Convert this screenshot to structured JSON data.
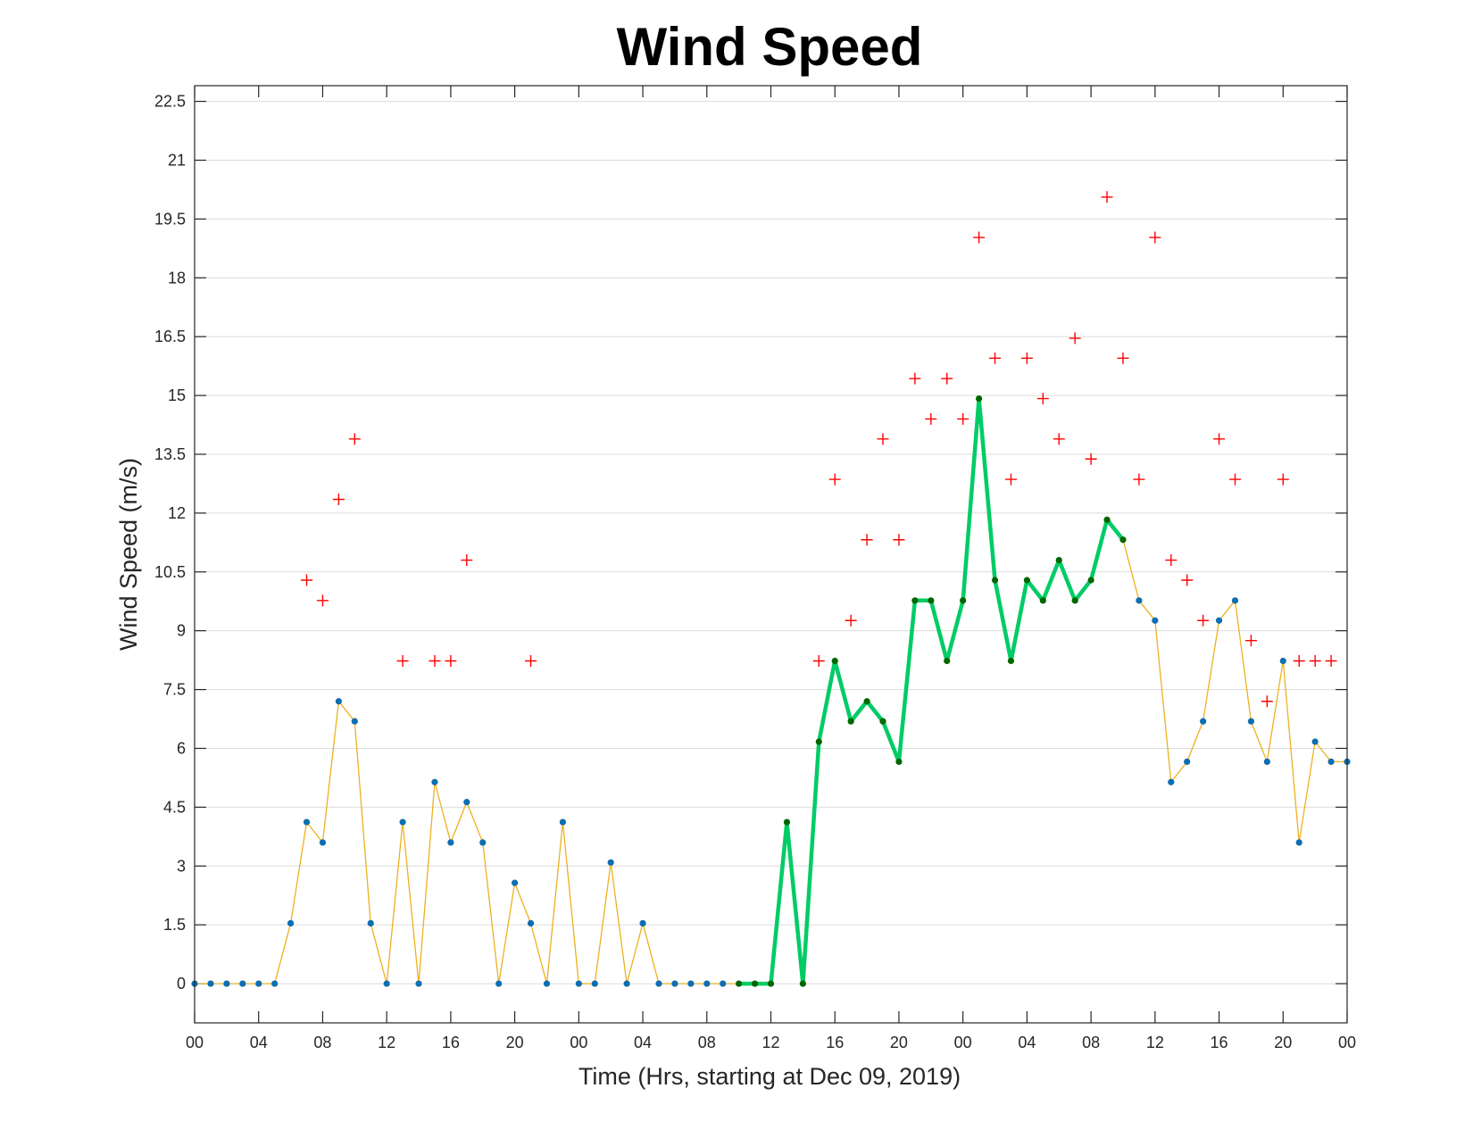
{
  "chart_data": {
    "type": "line",
    "title": "Wind Speed",
    "xlabel": "Time (Hrs, starting at Dec 09, 2019)",
    "ylabel": "Wind Speed (m/s)",
    "x_unit": "hours",
    "xlim": [
      0,
      72
    ],
    "ylim": [
      -1,
      22.9
    ],
    "grid": "horizontal",
    "y_ticks": [
      "0",
      "1.5",
      "3",
      "4.5",
      "6",
      "7.5",
      "9",
      "10.5",
      "12",
      "13.5",
      "15",
      "16.5",
      "18",
      "19.5",
      "21",
      "22.5"
    ],
    "y_tick_values": [
      0,
      1.5,
      3,
      4.5,
      6,
      7.5,
      9,
      10.5,
      12,
      13.5,
      15,
      16.5,
      18,
      19.5,
      21,
      22.5
    ],
    "x_ticks": [
      "00",
      "04",
      "08",
      "12",
      "16",
      "20",
      "00",
      "04",
      "08",
      "12",
      "16",
      "20",
      "00",
      "04",
      "08",
      "12",
      "16",
      "20",
      "00"
    ],
    "x_tick_values": [
      0,
      4,
      8,
      12,
      16,
      20,
      24,
      28,
      32,
      36,
      40,
      44,
      48,
      52,
      56,
      60,
      64,
      68,
      72
    ],
    "colors": {
      "speed_line": "#EDB120",
      "speed_marker": "#0072BD",
      "highlight_line": "#00CC66",
      "highlight_marker": "#006600",
      "gust_marker": "#FF0000"
    },
    "series": [
      {
        "style": "thin line with blue dot markers",
        "x": [
          0,
          1,
          2,
          3,
          4,
          5,
          6,
          7,
          8,
          9,
          10,
          11,
          12,
          13,
          14,
          15,
          16,
          17,
          18,
          19,
          20,
          21,
          22,
          23,
          24,
          25,
          26,
          27,
          28,
          29,
          30,
          31,
          32,
          33,
          34,
          35,
          36,
          37,
          38,
          39,
          40,
          41,
          42,
          43,
          44,
          45,
          46,
          47,
          48,
          49,
          50,
          51,
          52,
          53,
          54,
          55,
          56,
          57,
          58,
          59,
          60,
          61,
          62,
          63,
          64,
          65,
          66,
          67,
          68,
          69,
          70,
          71,
          72
        ],
        "y": [
          0,
          0,
          0,
          0,
          0,
          0,
          1.54,
          4.12,
          3.6,
          7.2,
          6.69,
          1.54,
          0,
          4.12,
          0,
          5.14,
          3.6,
          4.63,
          3.6,
          0,
          2.57,
          1.54,
          0,
          4.12,
          0,
          0,
          3.09,
          0,
          1.54,
          0,
          0,
          0,
          0,
          0,
          0,
          0,
          0,
          4.12,
          0,
          6.17,
          8.23,
          6.69,
          7.2,
          6.69,
          5.66,
          9.77,
          9.77,
          8.23,
          9.77,
          14.92,
          10.29,
          8.23,
          10.29,
          9.77,
          10.8,
          9.77,
          10.29,
          11.83,
          11.32,
          9.77,
          9.26,
          5.14,
          5.66,
          6.69,
          9.26,
          9.77,
          6.69,
          5.66,
          8.23,
          3.6,
          6.17,
          5.66,
          5.66
        ]
      },
      {
        "style": "thick line with dark green dot markers",
        "x": [
          34,
          35,
          36,
          37,
          38,
          39,
          40,
          41,
          42,
          43,
          44,
          45,
          46,
          47,
          48,
          49,
          50,
          51,
          52,
          53,
          54,
          55,
          56,
          57,
          58
        ],
        "y": [
          0,
          0,
          0,
          4.12,
          0,
          6.17,
          8.23,
          6.69,
          7.2,
          6.69,
          5.66,
          9.77,
          9.77,
          8.23,
          9.77,
          14.92,
          10.29,
          8.23,
          10.29,
          9.77,
          10.8,
          9.77,
          10.29,
          11.83,
          11.32
        ]
      },
      {
        "style": "red plus markers",
        "x": [
          7,
          8,
          9,
          10,
          13,
          15,
          16,
          17,
          21,
          39,
          40,
          41,
          42,
          43,
          44,
          45,
          46,
          47,
          48,
          49,
          50,
          51,
          52,
          53,
          54,
          55,
          56,
          57,
          58,
          59,
          60,
          61,
          62,
          63,
          64,
          65,
          66,
          67,
          68,
          69,
          70,
          71
        ],
        "y": [
          10.29,
          9.77,
          12.35,
          13.89,
          8.23,
          8.23,
          8.23,
          10.8,
          8.23,
          8.23,
          12.86,
          9.26,
          11.32,
          13.89,
          11.32,
          15.43,
          14.4,
          15.43,
          14.4,
          19.03,
          15.95,
          12.86,
          15.95,
          14.92,
          13.89,
          16.46,
          13.38,
          20.06,
          15.95,
          12.86,
          19.03,
          10.8,
          10.29,
          9.26,
          13.89,
          12.86,
          8.75,
          7.2,
          12.86,
          8.23,
          8.23,
          8.23
        ]
      }
    ]
  }
}
